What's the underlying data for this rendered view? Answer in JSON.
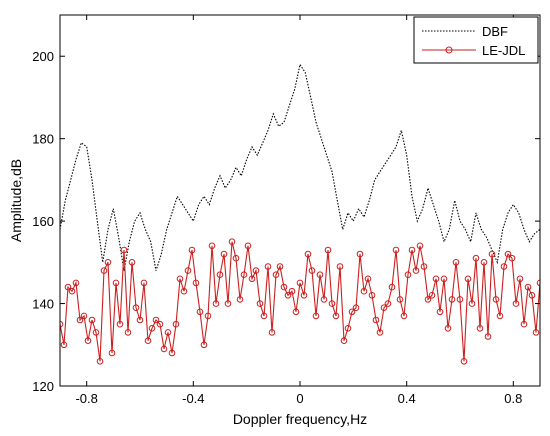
{
  "chart_data": {
    "type": "line",
    "xlabel": "Doppler frequency,Hz",
    "ylabel": "Amplitude,dB",
    "xlim": [
      -0.9,
      0.9
    ],
    "ylim": [
      120,
      210
    ],
    "xticks": [
      -0.8,
      -0.4,
      0,
      0.4,
      0.8
    ],
    "xtick_labels": [
      "-0.8",
      "-0.4",
      "0",
      "0.4",
      "0.8"
    ],
    "yticks": [
      120,
      140,
      160,
      180,
      200
    ],
    "ytick_labels": [
      "120",
      "140",
      "160",
      "180",
      "200"
    ],
    "grid": false,
    "legend_position": "top-right",
    "series": [
      {
        "name": "DBF",
        "color": "#000000",
        "style": "dotted",
        "x": [
          -0.9,
          -0.88,
          -0.86,
          -0.84,
          -0.82,
          -0.8,
          -0.78,
          -0.76,
          -0.74,
          -0.72,
          -0.7,
          -0.68,
          -0.66,
          -0.64,
          -0.62,
          -0.6,
          -0.58,
          -0.56,
          -0.54,
          -0.52,
          -0.5,
          -0.48,
          -0.46,
          -0.44,
          -0.42,
          -0.4,
          -0.38,
          -0.36,
          -0.34,
          -0.32,
          -0.3,
          -0.28,
          -0.26,
          -0.24,
          -0.22,
          -0.2,
          -0.18,
          -0.16,
          -0.14,
          -0.12,
          -0.1,
          -0.08,
          -0.06,
          -0.04,
          -0.02,
          0.0,
          0.02,
          0.04,
          0.06,
          0.08,
          0.1,
          0.12,
          0.14,
          0.16,
          0.18,
          0.2,
          0.22,
          0.24,
          0.26,
          0.28,
          0.3,
          0.32,
          0.34,
          0.36,
          0.38,
          0.4,
          0.42,
          0.44,
          0.46,
          0.48,
          0.5,
          0.52,
          0.54,
          0.56,
          0.58,
          0.6,
          0.62,
          0.64,
          0.66,
          0.68,
          0.7,
          0.72,
          0.74,
          0.76,
          0.78,
          0.8,
          0.82,
          0.84,
          0.86,
          0.88,
          0.9
        ],
        "values": [
          158,
          165,
          170,
          175,
          179,
          178,
          170,
          160,
          150,
          158,
          163,
          156,
          148,
          155,
          160,
          162,
          158,
          155,
          148,
          152,
          158,
          162,
          166,
          164,
          162,
          160,
          164,
          166,
          164,
          168,
          171,
          168,
          170,
          173,
          171,
          175,
          178,
          176,
          179,
          182,
          186,
          183,
          184,
          188,
          192,
          198,
          196,
          190,
          184,
          180,
          176,
          172,
          165,
          158,
          162,
          160,
          163,
          161,
          165,
          170,
          172,
          174,
          176,
          178,
          182,
          176,
          166,
          160,
          163,
          168,
          164,
          160,
          155,
          158,
          165,
          160,
          158,
          155,
          162,
          158,
          156,
          153,
          150,
          158,
          162,
          164,
          162,
          158,
          155,
          157,
          158
        ]
      },
      {
        "name": "LE-JDL",
        "color": "#cc1f1f",
        "style": "solid-circle-markers",
        "x": [
          -0.9,
          -0.885,
          -0.87,
          -0.855,
          -0.84,
          -0.825,
          -0.81,
          -0.795,
          -0.78,
          -0.765,
          -0.75,
          -0.735,
          -0.72,
          -0.705,
          -0.69,
          -0.675,
          -0.66,
          -0.645,
          -0.63,
          -0.615,
          -0.6,
          -0.585,
          -0.57,
          -0.555,
          -0.54,
          -0.525,
          -0.51,
          -0.495,
          -0.48,
          -0.465,
          -0.45,
          -0.435,
          -0.42,
          -0.405,
          -0.39,
          -0.375,
          -0.36,
          -0.345,
          -0.33,
          -0.315,
          -0.3,
          -0.285,
          -0.27,
          -0.255,
          -0.24,
          -0.225,
          -0.21,
          -0.195,
          -0.18,
          -0.165,
          -0.15,
          -0.135,
          -0.12,
          -0.105,
          -0.09,
          -0.075,
          -0.06,
          -0.045,
          -0.03,
          -0.015,
          0.0,
          0.015,
          0.03,
          0.045,
          0.06,
          0.075,
          0.09,
          0.105,
          0.12,
          0.135,
          0.15,
          0.165,
          0.18,
          0.195,
          0.21,
          0.225,
          0.24,
          0.255,
          0.27,
          0.285,
          0.3,
          0.315,
          0.33,
          0.345,
          0.36,
          0.375,
          0.39,
          0.405,
          0.42,
          0.435,
          0.45,
          0.465,
          0.48,
          0.495,
          0.51,
          0.525,
          0.54,
          0.555,
          0.57,
          0.585,
          0.6,
          0.615,
          0.63,
          0.645,
          0.66,
          0.675,
          0.69,
          0.705,
          0.72,
          0.735,
          0.75,
          0.765,
          0.78,
          0.795,
          0.81,
          0.825,
          0.84,
          0.855,
          0.87,
          0.885,
          0.9
        ],
        "values": [
          135,
          130,
          144,
          143,
          145,
          136,
          137,
          131,
          136,
          133,
          126,
          148,
          150,
          128,
          145,
          135,
          153,
          133,
          150,
          139,
          136,
          145,
          131,
          134,
          136,
          135,
          129,
          133,
          128,
          135,
          146,
          143,
          148,
          153,
          145,
          138,
          130,
          137,
          154,
          140,
          147,
          152,
          140,
          155,
          151,
          141,
          147,
          154,
          146,
          148,
          140,
          137,
          149,
          133,
          147,
          149,
          144,
          142,
          143,
          138,
          145,
          142,
          152,
          148,
          137,
          147,
          141,
          153,
          140,
          137,
          149,
          131,
          134,
          138,
          139,
          152,
          143,
          146,
          142,
          136,
          133,
          139,
          140,
          144,
          153,
          141,
          137,
          147,
          153,
          148,
          154,
          149,
          141,
          142,
          146,
          138,
          146,
          134,
          141,
          150,
          141,
          126,
          146,
          140,
          151,
          134,
          150,
          132,
          152,
          141,
          137,
          149,
          152,
          151,
          140,
          146,
          135,
          144,
          142,
          133,
          145
        ]
      }
    ]
  }
}
